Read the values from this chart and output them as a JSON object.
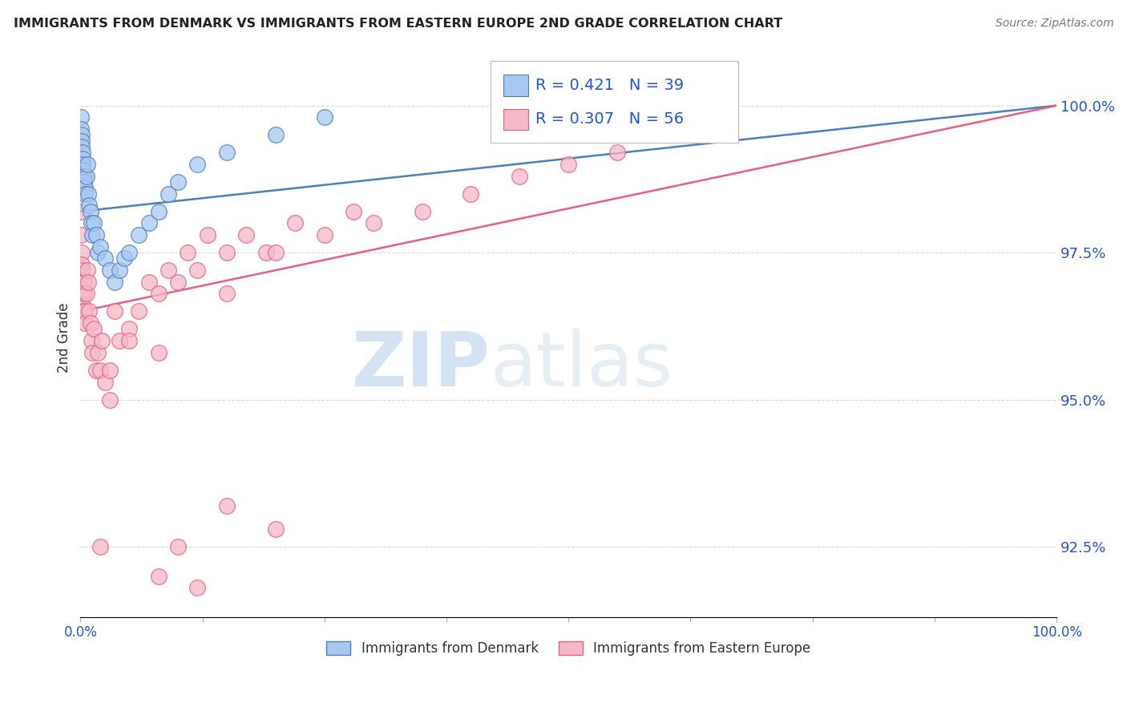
{
  "title": "IMMIGRANTS FROM DENMARK VS IMMIGRANTS FROM EASTERN EUROPE 2ND GRADE CORRELATION CHART",
  "source": "Source: ZipAtlas.com",
  "ylabel": "2nd Grade",
  "yticks": [
    92.5,
    95.0,
    97.5,
    100.0
  ],
  "ytick_labels": [
    "92.5%",
    "95.0%",
    "97.5%",
    "100.0%"
  ],
  "xmin": 0.0,
  "xmax": 100.0,
  "ymin": 91.3,
  "ymax": 100.8,
  "series_denmark": {
    "label": "Immigrants from Denmark",
    "R": 0.421,
    "N": 39,
    "color": "#a8c8f0",
    "line_color": "#4a7fc1",
    "x": [
      0.05,
      0.08,
      0.1,
      0.12,
      0.15,
      0.18,
      0.2,
      0.25,
      0.3,
      0.35,
      0.4,
      0.45,
      0.5,
      0.6,
      0.7,
      0.8,
      0.9,
      1.0,
      1.1,
      1.2,
      1.4,
      1.6,
      1.8,
      2.0,
      2.5,
      3.0,
      3.5,
      4.0,
      4.5,
      5.0,
      6.0,
      7.0,
      8.0,
      9.0,
      10.0,
      12.0,
      15.0,
      20.0,
      25.0
    ],
    "y": [
      99.8,
      99.6,
      99.5,
      99.4,
      99.3,
      99.2,
      99.1,
      99.0,
      98.9,
      98.8,
      98.7,
      98.6,
      98.5,
      98.8,
      99.0,
      98.5,
      98.3,
      98.2,
      98.0,
      97.8,
      98.0,
      97.8,
      97.5,
      97.6,
      97.4,
      97.2,
      97.0,
      97.2,
      97.4,
      97.5,
      97.8,
      98.0,
      98.2,
      98.5,
      98.7,
      99.0,
      99.2,
      99.5,
      99.8
    ],
    "trend_x0": 0.0,
    "trend_x1": 100.0,
    "trend_y0": 98.2,
    "trend_y1": 100.0
  },
  "series_eastern": {
    "label": "Immigrants from Eastern Europe",
    "R": 0.307,
    "N": 56,
    "color": "#f5b8c8",
    "line_color": "#e8607a",
    "x": [
      0.05,
      0.08,
      0.1,
      0.12,
      0.15,
      0.18,
      0.2,
      0.25,
      0.3,
      0.35,
      0.4,
      0.45,
      0.5,
      0.6,
      0.7,
      0.8,
      0.9,
      1.0,
      1.1,
      1.2,
      1.4,
      1.6,
      1.8,
      2.0,
      2.2,
      2.5,
      3.0,
      3.5,
      4.0,
      5.0,
      6.0,
      7.0,
      8.0,
      9.0,
      10.0,
      11.0,
      12.0,
      13.0,
      15.0,
      17.0,
      19.0,
      22.0,
      25.0,
      28.0,
      30.0,
      35.0,
      40.0,
      45.0,
      50.0,
      55.0,
      15.0,
      20.0,
      8.0,
      5.0,
      3.0,
      2.0
    ],
    "y": [
      98.2,
      97.8,
      97.5,
      97.3,
      97.2,
      97.0,
      96.8,
      96.6,
      96.5,
      97.0,
      96.8,
      96.5,
      96.3,
      96.8,
      97.2,
      97.0,
      96.5,
      96.3,
      96.0,
      95.8,
      96.2,
      95.5,
      95.8,
      95.5,
      96.0,
      95.3,
      95.0,
      96.5,
      96.0,
      96.2,
      96.5,
      97.0,
      96.8,
      97.2,
      97.0,
      97.5,
      97.2,
      97.8,
      97.5,
      97.8,
      97.5,
      98.0,
      97.8,
      98.2,
      98.0,
      98.2,
      98.5,
      98.8,
      99.0,
      99.2,
      96.8,
      97.5,
      95.8,
      96.0,
      95.5,
      92.5
    ],
    "trend_x0": 0.0,
    "trend_x1": 100.0,
    "trend_y0": 96.5,
    "trend_y1": 100.0
  },
  "pink_low_points": {
    "x": [
      10.0,
      12.0,
      8.0,
      15.0,
      20.0
    ],
    "y": [
      92.5,
      91.8,
      92.0,
      93.2,
      92.8
    ]
  },
  "watermark_zip": "ZIP",
  "watermark_atlas": "atlas",
  "legend_color": "#2255cc",
  "background_color": "#ffffff",
  "grid_color": "#cccccc"
}
